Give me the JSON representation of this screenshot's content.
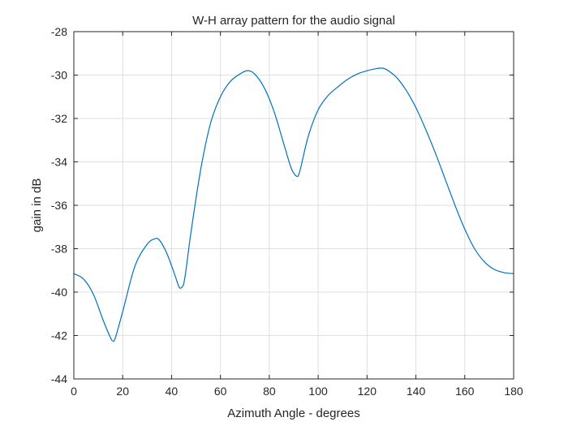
{
  "chart_data": {
    "type": "line",
    "title": "W-H array pattern for the audio signal",
    "xlabel": "Azimuth Angle - degrees",
    "ylabel": "gain in dB",
    "xlim": [
      0,
      180
    ],
    "ylim": [
      -44,
      -28
    ],
    "xticks": [
      0,
      20,
      40,
      60,
      80,
      100,
      120,
      140,
      160,
      180
    ],
    "yticks": [
      -44,
      -42,
      -40,
      -38,
      -36,
      -34,
      -32,
      -30,
      -28
    ],
    "grid": true,
    "series": [
      {
        "color": "#0072bd",
        "x": [
          0,
          4,
          8,
          12,
          15,
          16,
          17,
          20,
          25,
          30,
          33,
          35,
          38,
          41,
          43,
          44,
          45,
          46,
          48,
          52,
          56,
          60,
          64,
          68,
          71,
          74,
          78,
          82,
          86,
          89,
          91,
          92,
          93,
          96,
          100,
          104,
          108,
          112,
          116,
          120,
          124,
          126,
          128,
          132,
          136,
          140,
          144,
          148,
          152,
          156,
          160,
          164,
          168,
          172,
          176,
          180
        ],
        "y": [
          -39.15,
          -39.4,
          -40.1,
          -41.3,
          -42.1,
          -42.25,
          -42.1,
          -40.9,
          -38.8,
          -37.8,
          -37.55,
          -37.6,
          -38.2,
          -39.1,
          -39.75,
          -39.8,
          -39.6,
          -38.9,
          -37.2,
          -34.3,
          -32.2,
          -31.0,
          -30.3,
          -29.95,
          -29.8,
          -29.95,
          -30.6,
          -31.7,
          -33.2,
          -34.3,
          -34.65,
          -34.6,
          -34.2,
          -32.8,
          -31.6,
          -30.95,
          -30.55,
          -30.2,
          -29.95,
          -29.8,
          -29.7,
          -29.68,
          -29.75,
          -30.1,
          -30.7,
          -31.5,
          -32.5,
          -33.6,
          -34.8,
          -36.0,
          -37.1,
          -38.0,
          -38.6,
          -38.95,
          -39.1,
          -39.15
        ]
      }
    ]
  }
}
